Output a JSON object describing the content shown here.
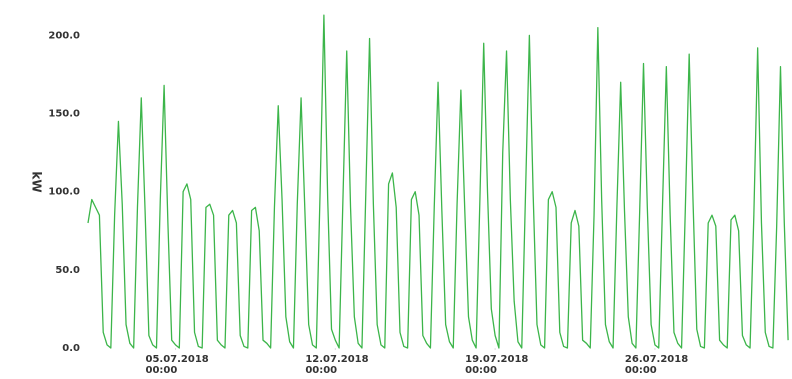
{
  "chart_data": {
    "type": "line",
    "y_label": "kW",
    "color": "#3cb54a",
    "ylim": [
      0,
      215
    ],
    "yticks": [
      {
        "value": 0,
        "label": "0.0"
      },
      {
        "value": 50,
        "label": "50.0"
      },
      {
        "value": 100,
        "label": "100.0"
      },
      {
        "value": 150,
        "label": "150.0"
      },
      {
        "value": 200,
        "label": "200.0"
      }
    ],
    "xlim": [
      "01.07.2018 04:00",
      "31.07.2018 22:00"
    ],
    "xticks": [
      "05.07.2018 00:00",
      "12.07.2018 00:00",
      "19.07.2018 00:00",
      "26.07.2018 00:00"
    ],
    "x": [
      "01.07.2018 04:00",
      "01.07.2018 08:00",
      "01.07.2018 12:00",
      "01.07.2018 16:00",
      "01.07.2018 20:00",
      "02.07.2018 00:00",
      "02.07.2018 04:00",
      "02.07.2018 08:00",
      "02.07.2018 12:00",
      "02.07.2018 16:00",
      "02.07.2018 20:00",
      "03.07.2018 00:00",
      "03.07.2018 04:00",
      "03.07.2018 08:00",
      "03.07.2018 12:00",
      "03.07.2018 16:00",
      "03.07.2018 20:00",
      "04.07.2018 00:00",
      "04.07.2018 04:00",
      "04.07.2018 08:00",
      "04.07.2018 12:00",
      "04.07.2018 16:00",
      "04.07.2018 20:00",
      "05.07.2018 00:00",
      "05.07.2018 04:00",
      "05.07.2018 08:00",
      "05.07.2018 12:00",
      "05.07.2018 16:00",
      "05.07.2018 20:00",
      "06.07.2018 00:00",
      "06.07.2018 04:00",
      "06.07.2018 08:00",
      "06.07.2018 12:00",
      "06.07.2018 16:00",
      "06.07.2018 20:00",
      "07.07.2018 00:00",
      "07.07.2018 04:00",
      "07.07.2018 08:00",
      "07.07.2018 12:00",
      "07.07.2018 16:00",
      "07.07.2018 20:00",
      "08.07.2018 00:00",
      "08.07.2018 04:00",
      "08.07.2018 08:00",
      "08.07.2018 12:00",
      "08.07.2018 16:00",
      "08.07.2018 20:00",
      "09.07.2018 00:00",
      "09.07.2018 04:00",
      "09.07.2018 08:00",
      "09.07.2018 12:00",
      "09.07.2018 16:00",
      "09.07.2018 20:00",
      "10.07.2018 00:00",
      "10.07.2018 04:00",
      "10.07.2018 08:00",
      "10.07.2018 12:00",
      "10.07.2018 16:00",
      "10.07.2018 20:00",
      "11.07.2018 00:00",
      "11.07.2018 04:00",
      "11.07.2018 08:00",
      "11.07.2018 12:00",
      "11.07.2018 16:00",
      "11.07.2018 20:00",
      "12.07.2018 00:00",
      "12.07.2018 04:00",
      "12.07.2018 08:00",
      "12.07.2018 12:00",
      "12.07.2018 16:00",
      "12.07.2018 20:00",
      "13.07.2018 00:00",
      "13.07.2018 04:00",
      "13.07.2018 08:00",
      "13.07.2018 12:00",
      "13.07.2018 16:00",
      "13.07.2018 20:00",
      "14.07.2018 00:00",
      "14.07.2018 04:00",
      "14.07.2018 08:00",
      "14.07.2018 12:00",
      "14.07.2018 16:00",
      "14.07.2018 20:00",
      "15.07.2018 00:00",
      "15.07.2018 04:00",
      "15.07.2018 08:00",
      "15.07.2018 12:00",
      "15.07.2018 16:00",
      "15.07.2018 20:00",
      "16.07.2018 00:00",
      "16.07.2018 04:00",
      "16.07.2018 08:00",
      "16.07.2018 12:00",
      "16.07.2018 16:00",
      "16.07.2018 20:00",
      "17.07.2018 00:00",
      "17.07.2018 04:00",
      "17.07.2018 08:00",
      "17.07.2018 12:00",
      "17.07.2018 16:00",
      "17.07.2018 20:00",
      "18.07.2018 00:00",
      "18.07.2018 04:00",
      "18.07.2018 08:00",
      "18.07.2018 12:00",
      "18.07.2018 16:00",
      "18.07.2018 20:00",
      "19.07.2018 00:00",
      "19.07.2018 04:00",
      "19.07.2018 08:00",
      "19.07.2018 12:00",
      "19.07.2018 16:00",
      "19.07.2018 20:00",
      "20.07.2018 00:00",
      "20.07.2018 04:00",
      "20.07.2018 08:00",
      "20.07.2018 12:00",
      "20.07.2018 16:00",
      "20.07.2018 20:00",
      "21.07.2018 00:00",
      "21.07.2018 04:00",
      "21.07.2018 08:00",
      "21.07.2018 12:00",
      "21.07.2018 16:00",
      "21.07.2018 20:00",
      "22.07.2018 00:00",
      "22.07.2018 04:00",
      "22.07.2018 08:00",
      "22.07.2018 12:00",
      "22.07.2018 16:00",
      "22.07.2018 20:00",
      "23.07.2018 00:00",
      "23.07.2018 04:00",
      "23.07.2018 08:00",
      "23.07.2018 12:00",
      "23.07.2018 16:00",
      "23.07.2018 20:00",
      "24.07.2018 00:00",
      "24.07.2018 04:00",
      "24.07.2018 08:00",
      "24.07.2018 12:00",
      "24.07.2018 16:00",
      "24.07.2018 20:00",
      "25.07.2018 00:00",
      "25.07.2018 04:00",
      "25.07.2018 08:00",
      "25.07.2018 12:00",
      "25.07.2018 16:00",
      "25.07.2018 20:00",
      "26.07.2018 00:00",
      "26.07.2018 04:00",
      "26.07.2018 08:00",
      "26.07.2018 12:00",
      "26.07.2018 16:00",
      "26.07.2018 20:00",
      "27.07.2018 00:00",
      "27.07.2018 04:00",
      "27.07.2018 08:00",
      "27.07.2018 12:00",
      "27.07.2018 16:00",
      "27.07.2018 20:00",
      "28.07.2018 00:00",
      "28.07.2018 04:00",
      "28.07.2018 08:00",
      "28.07.2018 12:00",
      "28.07.2018 16:00",
      "28.07.2018 20:00",
      "29.07.2018 00:00",
      "29.07.2018 04:00",
      "29.07.2018 08:00",
      "29.07.2018 12:00",
      "29.07.2018 16:00",
      "29.07.2018 20:00",
      "30.07.2018 00:00",
      "30.07.2018 04:00",
      "30.07.2018 08:00",
      "30.07.2018 12:00",
      "30.07.2018 16:00",
      "30.07.2018 20:00",
      "31.07.2018 00:00",
      "31.07.2018 04:00",
      "31.07.2018 08:00",
      "31.07.2018 12:00",
      "31.07.2018 16:00",
      "31.07.2018 20:00"
    ],
    "values": [
      80,
      95,
      90,
      85,
      10,
      2,
      0,
      85,
      145,
      92,
      15,
      3,
      0,
      90,
      160,
      88,
      8,
      2,
      0,
      95,
      168,
      80,
      5,
      2,
      0,
      100,
      105,
      95,
      10,
      1,
      0,
      90,
      92,
      85,
      5,
      2,
      0,
      85,
      88,
      80,
      8,
      1,
      0,
      88,
      90,
      75,
      5,
      3,
      0,
      90,
      155,
      95,
      20,
      4,
      0,
      92,
      160,
      88,
      15,
      2,
      0,
      100,
      213,
      95,
      12,
      5,
      0,
      95,
      190,
      90,
      20,
      3,
      0,
      98,
      198,
      92,
      15,
      2,
      0,
      105,
      112,
      90,
      10,
      1,
      0,
      95,
      100,
      85,
      8,
      3,
      0,
      90,
      170,
      88,
      15,
      4,
      0,
      92,
      165,
      90,
      20,
      5,
      0,
      95,
      195,
      100,
      25,
      8,
      0,
      125,
      190,
      95,
      30,
      4,
      0,
      100,
      200,
      98,
      15,
      2,
      0,
      95,
      100,
      90,
      10,
      1,
      0,
      80,
      88,
      78,
      5,
      3,
      0,
      85,
      205,
      95,
      15,
      4,
      0,
      90,
      170,
      88,
      20,
      3,
      0,
      88,
      182,
      90,
      15,
      2,
      0,
      92,
      180,
      85,
      10,
      3,
      0,
      90,
      188,
      95,
      12,
      1,
      0,
      80,
      85,
      78,
      5,
      2,
      0,
      82,
      85,
      75,
      8,
      2,
      0,
      85,
      192,
      80,
      10,
      1,
      0,
      78,
      180,
      80,
      5
    ]
  }
}
